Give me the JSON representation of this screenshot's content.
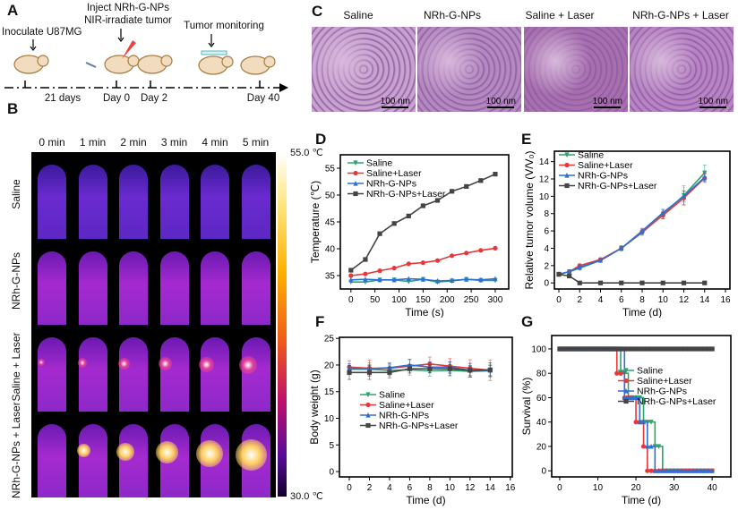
{
  "panel_labels": {
    "a": "A",
    "b": "B",
    "c": "C",
    "d": "D",
    "e": "E",
    "f": "F",
    "g": "G"
  },
  "schematic": {
    "inoculate": "Inoculate U87MG",
    "inject": "Inject NRh-G-NPs",
    "irradiate": "NIR-irradiate tumor",
    "monitoring": "Tumor monitoring",
    "timeline": [
      "21 days",
      "Day 0",
      "Day 2",
      "Day 40"
    ]
  },
  "thermal": {
    "time_labels": [
      "0 min",
      "1 min",
      "2 min",
      "3 min",
      "4 min",
      "5 min"
    ],
    "row_labels": [
      "Saline",
      "NRh-G-NPs",
      "Saline + Laser",
      "NRh-G-NPs + Laser"
    ],
    "colorbar_max": "55.0 ℃",
    "colorbar_min": "30.0 ℃"
  },
  "histology": {
    "headers": [
      "Saline",
      "NRh-G-NPs",
      "Saline + Laser",
      "NRh-G-NPs + Laser"
    ],
    "scale_bar": "100 nm",
    "colors": [
      "#c9a3cf",
      "#b489c0",
      "#a86fae",
      "#b884c4"
    ]
  },
  "series_colors": {
    "Saline": "#2ea36a",
    "Saline+Laser": "#e5383b",
    "NRh-G-NPs": "#2e6fd6",
    "NRh-G-NPs+Laser": "#444444"
  },
  "chart_data": [
    {
      "id": "D",
      "type": "line",
      "xlabel": "Time (s)",
      "ylabel": "Temperature (℃)",
      "xlim": [
        -22,
        328
      ],
      "ylim": [
        32.5,
        57.5
      ],
      "xticks": [
        0,
        50,
        100,
        150,
        200,
        250,
        300
      ],
      "yticks": [
        35,
        40,
        45,
        50,
        55
      ],
      "legend": "top-left",
      "x": [
        0,
        30,
        60,
        90,
        120,
        150,
        180,
        210,
        240,
        270,
        300
      ],
      "series": [
        {
          "name": "Saline",
          "marker": "tri-down",
          "values": [
            33.8,
            33.8,
            34.2,
            34.2,
            33.9,
            34.3,
            33.8,
            34.0,
            34.3,
            34.1,
            34.1
          ]
        },
        {
          "name": "Saline+Laser",
          "marker": "circle",
          "values": [
            35.0,
            35.3,
            35.9,
            36.4,
            37.2,
            37.4,
            37.8,
            38.7,
            39.2,
            39.7,
            40.1
          ]
        },
        {
          "name": "NRh-G-NPs",
          "marker": "tri-up",
          "values": [
            34.2,
            34.3,
            34.2,
            34.2,
            34.4,
            34.3,
            34.0,
            34.1,
            34.3,
            34.2,
            34.4
          ]
        },
        {
          "name": "NRh-G-NPs+Laser",
          "marker": "square",
          "values": [
            36.0,
            38.0,
            42.8,
            44.7,
            46.1,
            48.0,
            49.0,
            50.7,
            51.6,
            52.7,
            53.9
          ]
        }
      ]
    },
    {
      "id": "E",
      "type": "line",
      "xlabel": "Time (d)",
      "ylabel": "Relative tumor volume (V/V₀)",
      "xlim": [
        -0.43,
        16.43
      ],
      "ylim": [
        -0.7,
        15.2
      ],
      "xticks": [
        0,
        2,
        4,
        6,
        8,
        10,
        12,
        14,
        16
      ],
      "yticks": [
        0,
        2,
        4,
        6,
        8,
        10,
        12,
        14
      ],
      "legend": "top-left",
      "x": [
        0,
        1,
        2,
        4,
        6,
        8,
        10,
        12,
        14
      ],
      "series": [
        {
          "name": "Saline",
          "marker": "tri-down",
          "values": [
            1,
            1.3,
            1.7,
            2.6,
            4.0,
            5.8,
            7.9,
            10.1,
            12.7
          ],
          "error": [
            0.1,
            0.2,
            0.2,
            0.2,
            0.3,
            0.3,
            0.5,
            1.1,
            0.9
          ]
        },
        {
          "name": "Saline+Laser",
          "marker": "circle",
          "values": [
            1,
            1.3,
            2.0,
            2.7,
            4.0,
            5.9,
            7.8,
            9.8,
            12.1
          ],
          "error": [
            0.1,
            0.1,
            0.2,
            0.2,
            0.2,
            0.3,
            0.4,
            0.8,
            0.5
          ]
        },
        {
          "name": "NRh-G-NPs",
          "marker": "tri-up",
          "values": [
            1,
            1.3,
            1.8,
            2.6,
            4.0,
            6.0,
            8.1,
            10.0,
            12.2
          ],
          "error": [
            0.1,
            0.1,
            0.2,
            0.2,
            0.2,
            0.3,
            0.4,
            0.6,
            0.5
          ]
        },
        {
          "name": "NRh-G-NPs+Laser",
          "marker": "square",
          "values": [
            1,
            0.8,
            0,
            0,
            0,
            0,
            0,
            0,
            0
          ],
          "error": [
            0.1,
            0.1,
            0,
            0,
            0,
            0,
            0,
            0,
            0
          ]
        }
      ]
    },
    {
      "id": "F",
      "type": "line",
      "xlabel": "Time (d)",
      "ylabel": "Body weight (g)",
      "xlim": [
        -0.98,
        16.2
      ],
      "ylim": [
        -1,
        25.2
      ],
      "xticks": [
        0,
        2,
        4,
        6,
        8,
        10,
        12,
        14,
        16
      ],
      "yticks": [
        0,
        5,
        10,
        15,
        20,
        25
      ],
      "legend": "center",
      "x": [
        0,
        2,
        4,
        6,
        8,
        10,
        12,
        14
      ],
      "series": [
        {
          "name": "Saline",
          "marker": "tri-down",
          "values": [
            19.2,
            19.2,
            19.0,
            19.1,
            18.9,
            19.0,
            18.8,
            18.9
          ],
          "error": [
            1.0,
            1.2,
            1.0,
            1.0,
            1.0,
            1.0,
            1.0,
            1.0
          ]
        },
        {
          "name": "Saline+Laser",
          "marker": "circle",
          "values": [
            19.6,
            19.4,
            19.4,
            19.8,
            20.2,
            19.8,
            19.4,
            19.0
          ],
          "error": [
            1.2,
            1.5,
            1.0,
            1.3,
            1.3,
            1.4,
            1.6,
            1.9
          ]
        },
        {
          "name": "NRh-G-NPs",
          "marker": "tri-up",
          "values": [
            19.4,
            19.3,
            19.5,
            20.0,
            19.6,
            19.6,
            19.0,
            19.0
          ],
          "error": [
            0.8,
            0.8,
            0.8,
            1.0,
            1.0,
            1.0,
            0.9,
            1.0
          ]
        },
        {
          "name": "NRh-G-NPs+Laser",
          "marker": "square",
          "values": [
            18.6,
            18.6,
            18.6,
            19.3,
            19.3,
            19.3,
            19.0,
            19.1
          ],
          "error": [
            1.3,
            1.3,
            1.0,
            0.8,
            0.8,
            1.3,
            1.3,
            1.3
          ]
        }
      ]
    },
    {
      "id": "G",
      "type": "line",
      "step": true,
      "xlabel": "Time (d)",
      "ylabel": "Survival (%)",
      "xlim": [
        -2.1,
        44.9
      ],
      "ylim": [
        -5,
        111
      ],
      "xticks": [
        0,
        10,
        20,
        30,
        40
      ],
      "yticks": [
        0,
        20,
        40,
        60,
        80,
        100
      ],
      "legend": "center-right",
      "series": [
        {
          "name": "Saline",
          "marker": "tri-down",
          "x": [
            0,
            16,
            18,
            22,
            25,
            27,
            40
          ],
          "values": [
            100,
            80,
            60,
            40,
            20,
            0,
            0
          ]
        },
        {
          "name": "Saline+Laser",
          "marker": "circle",
          "x": [
            0,
            15,
            17,
            20,
            22,
            23,
            40
          ],
          "values": [
            100,
            80,
            60,
            40,
            20,
            0,
            0
          ]
        },
        {
          "name": "NRh-G-NPs",
          "marker": "tri-up",
          "x": [
            0,
            17,
            21,
            23,
            25,
            40
          ],
          "values": [
            100,
            60,
            40,
            20,
            0,
            0
          ]
        },
        {
          "name": "NRh-G-NPs+Laser",
          "marker": "square",
          "x": [
            0,
            40
          ],
          "values": [
            100,
            100
          ]
        }
      ]
    }
  ]
}
